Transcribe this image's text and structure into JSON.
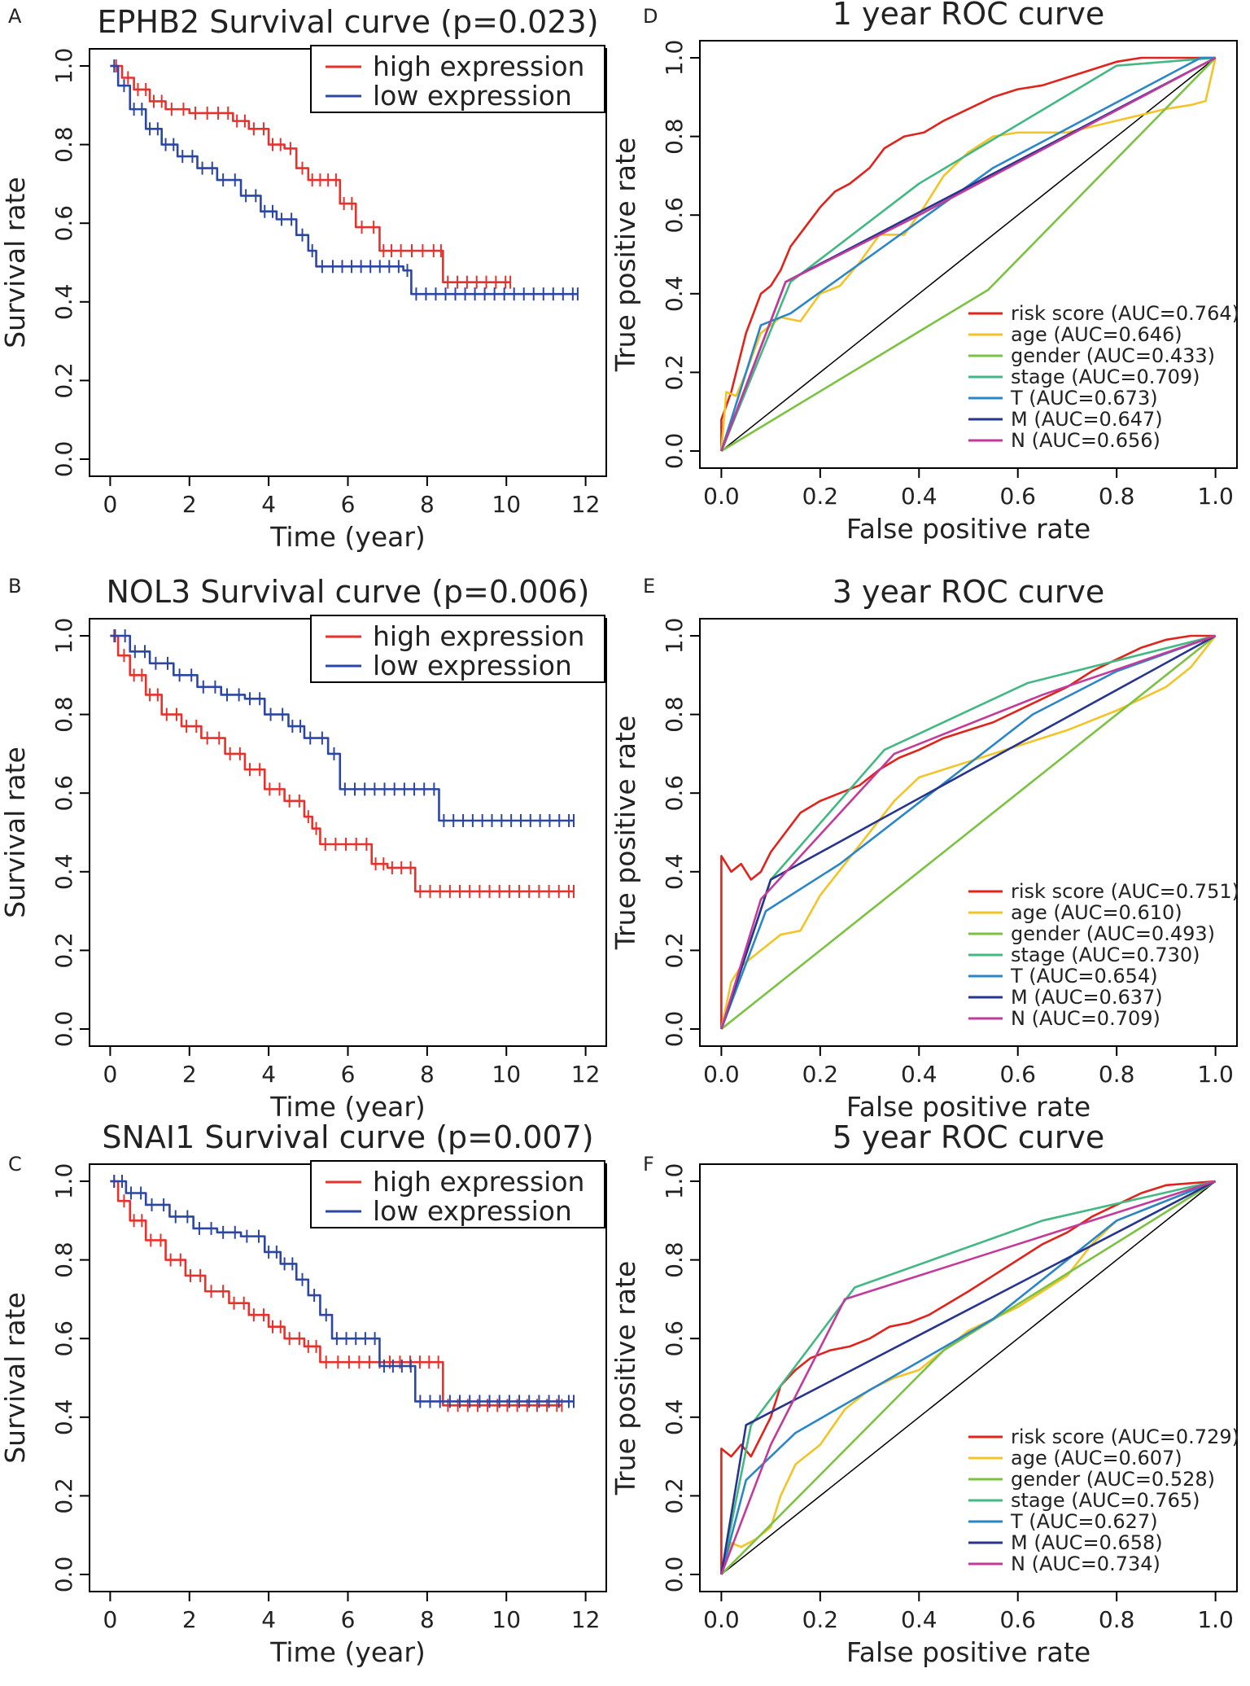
{
  "figure": {
    "panels": [
      {
        "letter": "A",
        "kind": "km"
      },
      {
        "letter": "B",
        "kind": "km"
      },
      {
        "letter": "C",
        "kind": "km"
      },
      {
        "letter": "D",
        "kind": "roc"
      },
      {
        "letter": "E",
        "kind": "roc"
      },
      {
        "letter": "F",
        "kind": "roc"
      }
    ]
  },
  "colors": {
    "high": "#e8312a",
    "low": "#2b46a4",
    "risk_score": "#e0231b",
    "age": "#f3c428",
    "gender": "#7cc242",
    "stage": "#42b883",
    "T": "#2b86c8",
    "M": "#27358e",
    "N": "#c23a9a",
    "diagonal": "#000000"
  },
  "chart_data": [
    {
      "panel": "A",
      "type": "line",
      "subtype": "kaplan-meier",
      "title": "EPHB2 Survival curve (p=0.023)",
      "xlabel": "Time (year)",
      "ylabel": "Survival rate",
      "xlim": [
        0,
        12
      ],
      "ylim": [
        0,
        1
      ],
      "xticks": [
        "0",
        "2",
        "4",
        "6",
        "8",
        "10",
        "12"
      ],
      "yticks": [
        "0.0",
        "0.2",
        "0.4",
        "0.6",
        "0.8",
        "1.0"
      ],
      "legend_position": "top-right",
      "series": [
        {
          "name": "high expression",
          "color_key": "high",
          "x": [
            0,
            0.3,
            0.6,
            1.0,
            1.4,
            2.0,
            2.6,
            3.1,
            3.5,
            4.0,
            4.4,
            4.7,
            5.0,
            5.4,
            5.8,
            6.2,
            6.8,
            7.2,
            8.3,
            8.4,
            10.1
          ],
          "y": [
            1.0,
            0.97,
            0.94,
            0.91,
            0.89,
            0.88,
            0.88,
            0.86,
            0.84,
            0.8,
            0.79,
            0.74,
            0.71,
            0.71,
            0.65,
            0.59,
            0.53,
            0.53,
            0.53,
            0.45,
            0.45
          ]
        },
        {
          "name": "low expression",
          "color_key": "low",
          "x": [
            0,
            0.2,
            0.5,
            0.9,
            1.3,
            1.7,
            2.2,
            2.7,
            3.3,
            3.8,
            4.2,
            4.7,
            5.0,
            5.2,
            5.5,
            7.4,
            7.6,
            11.8
          ],
          "y": [
            1.0,
            0.95,
            0.89,
            0.84,
            0.8,
            0.77,
            0.74,
            0.71,
            0.67,
            0.63,
            0.61,
            0.57,
            0.53,
            0.49,
            0.49,
            0.48,
            0.42,
            0.42
          ]
        }
      ]
    },
    {
      "panel": "B",
      "type": "line",
      "subtype": "kaplan-meier",
      "title": "NOL3 Survival curve (p=0.006)",
      "xlabel": "Time (year)",
      "ylabel": "Survival rate",
      "xlim": [
        0,
        12
      ],
      "ylim": [
        0,
        1
      ],
      "xticks": [
        "0",
        "2",
        "4",
        "6",
        "8",
        "10",
        "12"
      ],
      "yticks": [
        "0.0",
        "0.2",
        "0.4",
        "0.6",
        "0.8",
        "1.0"
      ],
      "legend_position": "top-right",
      "series": [
        {
          "name": "high expression",
          "color_key": "high",
          "x": [
            0,
            0.2,
            0.5,
            0.9,
            1.3,
            1.8,
            2.3,
            2.9,
            3.4,
            3.9,
            4.4,
            4.9,
            5.1,
            5.3,
            6.6,
            7.0,
            7.7,
            11.7
          ],
          "y": [
            1.0,
            0.95,
            0.9,
            0.85,
            0.8,
            0.77,
            0.74,
            0.7,
            0.66,
            0.61,
            0.58,
            0.54,
            0.51,
            0.47,
            0.42,
            0.41,
            0.35,
            0.35
          ]
        },
        {
          "name": "low expression",
          "color_key": "low",
          "x": [
            0,
            0.5,
            1.0,
            1.6,
            2.2,
            2.8,
            3.4,
            3.9,
            4.5,
            4.9,
            5.5,
            5.8,
            7.8,
            8.3,
            11.7
          ],
          "y": [
            1.0,
            0.96,
            0.93,
            0.9,
            0.87,
            0.85,
            0.84,
            0.8,
            0.77,
            0.74,
            0.7,
            0.61,
            0.61,
            0.53,
            0.53
          ]
        }
      ]
    },
    {
      "panel": "C",
      "type": "line",
      "subtype": "kaplan-meier",
      "title": "SNAI1 Survival curve (p=0.007)",
      "xlabel": "Time (year)",
      "ylabel": "Survival rate",
      "xlim": [
        0,
        12
      ],
      "ylim": [
        0,
        1
      ],
      "xticks": [
        "0",
        "2",
        "4",
        "6",
        "8",
        "10",
        "12"
      ],
      "yticks": [
        "0.0",
        "0.2",
        "0.4",
        "0.6",
        "0.8",
        "1.0"
      ],
      "legend_position": "top-right",
      "series": [
        {
          "name": "high expression",
          "color_key": "high",
          "x": [
            0,
            0.2,
            0.5,
            0.9,
            1.4,
            1.9,
            2.4,
            3.0,
            3.5,
            4.0,
            4.4,
            4.9,
            5.3,
            5.9,
            7.7,
            8.4,
            11.4
          ],
          "y": [
            1.0,
            0.95,
            0.9,
            0.85,
            0.8,
            0.76,
            0.72,
            0.69,
            0.66,
            0.63,
            0.6,
            0.58,
            0.54,
            0.54,
            0.54,
            0.43,
            0.43
          ]
        },
        {
          "name": "low expression",
          "color_key": "low",
          "x": [
            0,
            0.4,
            0.9,
            1.5,
            2.1,
            2.7,
            3.3,
            3.9,
            4.3,
            4.7,
            5.0,
            5.3,
            5.6,
            6.8,
            7.7,
            11.7
          ],
          "y": [
            1.0,
            0.97,
            0.94,
            0.91,
            0.88,
            0.87,
            0.86,
            0.82,
            0.79,
            0.75,
            0.71,
            0.66,
            0.6,
            0.53,
            0.44,
            0.44
          ]
        }
      ]
    },
    {
      "panel": "D",
      "type": "line",
      "subtype": "roc",
      "title": "1 year ROC curve",
      "xlabel": "False positive rate",
      "ylabel": "True positive rate",
      "xlim": [
        0,
        1
      ],
      "ylim": [
        0,
        1
      ],
      "xticks": [
        "0.0",
        "0.2",
        "0.4",
        "0.6",
        "0.8",
        "1.0"
      ],
      "yticks": [
        "0.0",
        "0.2",
        "0.4",
        "0.6",
        "0.8",
        "1.0"
      ],
      "legend_position": "bottom-right",
      "series": [
        {
          "name": "risk score (AUC=0.764)",
          "color_key": "risk_score",
          "x": [
            0,
            0,
            0.02,
            0.05,
            0.08,
            0.1,
            0.12,
            0.14,
            0.17,
            0.2,
            0.23,
            0.26,
            0.3,
            0.33,
            0.37,
            0.41,
            0.45,
            0.5,
            0.55,
            0.6,
            0.65,
            0.7,
            0.75,
            0.8,
            0.85,
            0.9,
            0.95,
            1.0
          ],
          "y": [
            0,
            0.08,
            0.15,
            0.3,
            0.4,
            0.42,
            0.46,
            0.52,
            0.57,
            0.62,
            0.66,
            0.68,
            0.72,
            0.77,
            0.8,
            0.81,
            0.84,
            0.87,
            0.9,
            0.92,
            0.93,
            0.95,
            0.97,
            0.99,
            1.0,
            1.0,
            1.0,
            1.0
          ]
        },
        {
          "name": "age (AUC=0.646)",
          "color_key": "age",
          "x": [
            0,
            0.01,
            0.03,
            0.05,
            0.08,
            0.12,
            0.16,
            0.2,
            0.24,
            0.28,
            0.32,
            0.37,
            0.41,
            0.45,
            0.5,
            0.55,
            0.6,
            0.7,
            0.8,
            0.9,
            0.95,
            0.98,
            1.0
          ],
          "y": [
            0,
            0.15,
            0.14,
            0.2,
            0.3,
            0.34,
            0.33,
            0.4,
            0.42,
            0.48,
            0.55,
            0.55,
            0.62,
            0.7,
            0.76,
            0.8,
            0.81,
            0.81,
            0.84,
            0.87,
            0.88,
            0.89,
            1.0
          ]
        },
        {
          "name": "gender (AUC=0.433)",
          "color_key": "gender",
          "x": [
            0,
            0.54,
            1.0
          ],
          "y": [
            0,
            0.41,
            1.0
          ]
        },
        {
          "name": "stage (AUC=0.709)",
          "color_key": "stage",
          "x": [
            0,
            0.14,
            0.4,
            0.8,
            1.0
          ],
          "y": [
            0,
            0.43,
            0.68,
            0.98,
            1.0
          ]
        },
        {
          "name": "T (AUC=0.673)",
          "color_key": "T",
          "x": [
            0,
            0.08,
            0.14,
            0.55,
            0.97,
            1.0
          ],
          "y": [
            0,
            0.32,
            0.35,
            0.72,
            1.0,
            1.0
          ]
        },
        {
          "name": "M (AUC=0.647)",
          "color_key": "M",
          "x": [
            0,
            0.13,
            1.0
          ],
          "y": [
            0,
            0.43,
            1.0
          ]
        },
        {
          "name": "N (AUC=0.656)",
          "color_key": "N",
          "x": [
            0,
            0.13,
            0.4,
            1.0
          ],
          "y": [
            0,
            0.43,
            0.6,
            1.0
          ]
        }
      ]
    },
    {
      "panel": "E",
      "type": "line",
      "subtype": "roc",
      "title": "3 year ROC curve",
      "xlabel": "False positive rate",
      "ylabel": "True positive rate",
      "xlim": [
        0,
        1
      ],
      "ylim": [
        0,
        1
      ],
      "xticks": [
        "0.0",
        "0.2",
        "0.4",
        "0.6",
        "0.8",
        "1.0"
      ],
      "yticks": [
        "0.0",
        "0.2",
        "0.4",
        "0.6",
        "0.8",
        "1.0"
      ],
      "legend_position": "bottom-right",
      "series": [
        {
          "name": "risk score (AUC=0.751)",
          "color_key": "risk_score",
          "x": [
            0,
            0,
            0.02,
            0.04,
            0.06,
            0.08,
            0.1,
            0.13,
            0.16,
            0.2,
            0.24,
            0.28,
            0.32,
            0.36,
            0.4,
            0.45,
            0.5,
            0.55,
            0.6,
            0.65,
            0.7,
            0.75,
            0.8,
            0.85,
            0.9,
            0.95,
            1.0
          ],
          "y": [
            0,
            0.44,
            0.4,
            0.42,
            0.38,
            0.4,
            0.45,
            0.5,
            0.55,
            0.58,
            0.6,
            0.62,
            0.66,
            0.69,
            0.71,
            0.74,
            0.76,
            0.78,
            0.81,
            0.84,
            0.87,
            0.91,
            0.94,
            0.97,
            0.99,
            1.0,
            1.0
          ]
        },
        {
          "name": "age (AUC=0.610)",
          "color_key": "age",
          "x": [
            0,
            0.02,
            0.04,
            0.06,
            0.08,
            0.12,
            0.16,
            0.2,
            0.25,
            0.3,
            0.35,
            0.4,
            0.5,
            0.6,
            0.7,
            0.8,
            0.9,
            0.95,
            1.0
          ],
          "y": [
            0,
            0.12,
            0.16,
            0.18,
            0.2,
            0.24,
            0.25,
            0.34,
            0.42,
            0.5,
            0.58,
            0.64,
            0.68,
            0.72,
            0.76,
            0.81,
            0.87,
            0.92,
            1.0
          ]
        },
        {
          "name": "gender (AUC=0.493)",
          "color_key": "gender",
          "x": [
            0,
            0.5,
            1.0
          ],
          "y": [
            0,
            0.5,
            1.0
          ]
        },
        {
          "name": "stage (AUC=0.730)",
          "color_key": "stage",
          "x": [
            0,
            0.1,
            0.33,
            0.62,
            1.0
          ],
          "y": [
            0,
            0.38,
            0.71,
            0.88,
            1.0
          ]
        },
        {
          "name": "T (AUC=0.654)",
          "color_key": "T",
          "x": [
            0,
            0.09,
            0.24,
            0.63,
            0.8,
            1.0
          ],
          "y": [
            0,
            0.3,
            0.42,
            0.8,
            0.91,
            1.0
          ]
        },
        {
          "name": "M (AUC=0.637)",
          "color_key": "M",
          "x": [
            0,
            0.1,
            1.0
          ],
          "y": [
            0,
            0.38,
            1.0
          ]
        },
        {
          "name": "N (AUC=0.709)",
          "color_key": "N",
          "x": [
            0,
            0.08,
            0.35,
            0.65,
            1.0
          ],
          "y": [
            0,
            0.33,
            0.7,
            0.85,
            1.0
          ]
        }
      ]
    },
    {
      "panel": "F",
      "type": "line",
      "subtype": "roc",
      "title": "5 year ROC curve",
      "xlabel": "False positive rate",
      "ylabel": "True positive rate",
      "xlim": [
        0,
        1
      ],
      "ylim": [
        0,
        1
      ],
      "xticks": [
        "0.0",
        "0.2",
        "0.4",
        "0.6",
        "0.8",
        "1.0"
      ],
      "yticks": [
        "0.0",
        "0.2",
        "0.4",
        "0.6",
        "0.8",
        "1.0"
      ],
      "legend_position": "bottom-right",
      "series": [
        {
          "name": "risk score (AUC=0.729)",
          "color_key": "risk_score",
          "x": [
            0,
            0,
            0.02,
            0.04,
            0.06,
            0.08,
            0.1,
            0.12,
            0.15,
            0.18,
            0.22,
            0.26,
            0.3,
            0.34,
            0.38,
            0.42,
            0.46,
            0.5,
            0.55,
            0.6,
            0.65,
            0.7,
            0.75,
            0.8,
            0.85,
            0.9,
            1.0
          ],
          "y": [
            0,
            0.32,
            0.3,
            0.33,
            0.3,
            0.35,
            0.4,
            0.48,
            0.52,
            0.55,
            0.57,
            0.58,
            0.6,
            0.63,
            0.64,
            0.66,
            0.69,
            0.72,
            0.76,
            0.8,
            0.84,
            0.87,
            0.91,
            0.94,
            0.97,
            0.99,
            1.0
          ]
        },
        {
          "name": "age (AUC=0.607)",
          "color_key": "age",
          "x": [
            0,
            0.02,
            0.04,
            0.07,
            0.1,
            0.12,
            0.15,
            0.2,
            0.25,
            0.3,
            0.35,
            0.4,
            0.5,
            0.6,
            0.7,
            0.75,
            0.8,
            0.9,
            1.0
          ],
          "y": [
            0,
            0.08,
            0.07,
            0.09,
            0.12,
            0.2,
            0.28,
            0.33,
            0.42,
            0.47,
            0.5,
            0.52,
            0.62,
            0.68,
            0.76,
            0.84,
            0.9,
            0.95,
            1.0
          ]
        },
        {
          "name": "gender (AUC=0.528)",
          "color_key": "gender",
          "x": [
            0,
            0.45,
            1.0
          ],
          "y": [
            0,
            0.57,
            1.0
          ]
        },
        {
          "name": "stage (AUC=0.765)",
          "color_key": "stage",
          "x": [
            0,
            0.06,
            0.27,
            0.65,
            1.0
          ],
          "y": [
            0,
            0.38,
            0.73,
            0.9,
            1.0
          ]
        },
        {
          "name": "T (AUC=0.627)",
          "color_key": "T",
          "x": [
            0,
            0.05,
            0.15,
            0.55,
            0.8,
            1.0
          ],
          "y": [
            0,
            0.24,
            0.36,
            0.65,
            0.9,
            1.0
          ]
        },
        {
          "name": "M (AUC=0.658)",
          "color_key": "M",
          "x": [
            0,
            0.05,
            1.0
          ],
          "y": [
            0,
            0.38,
            1.0
          ]
        },
        {
          "name": "N (AUC=0.734)",
          "color_key": "N",
          "x": [
            0,
            0.1,
            0.25,
            0.55,
            1.0
          ],
          "y": [
            0,
            0.33,
            0.7,
            0.82,
            1.0
          ]
        }
      ]
    }
  ]
}
